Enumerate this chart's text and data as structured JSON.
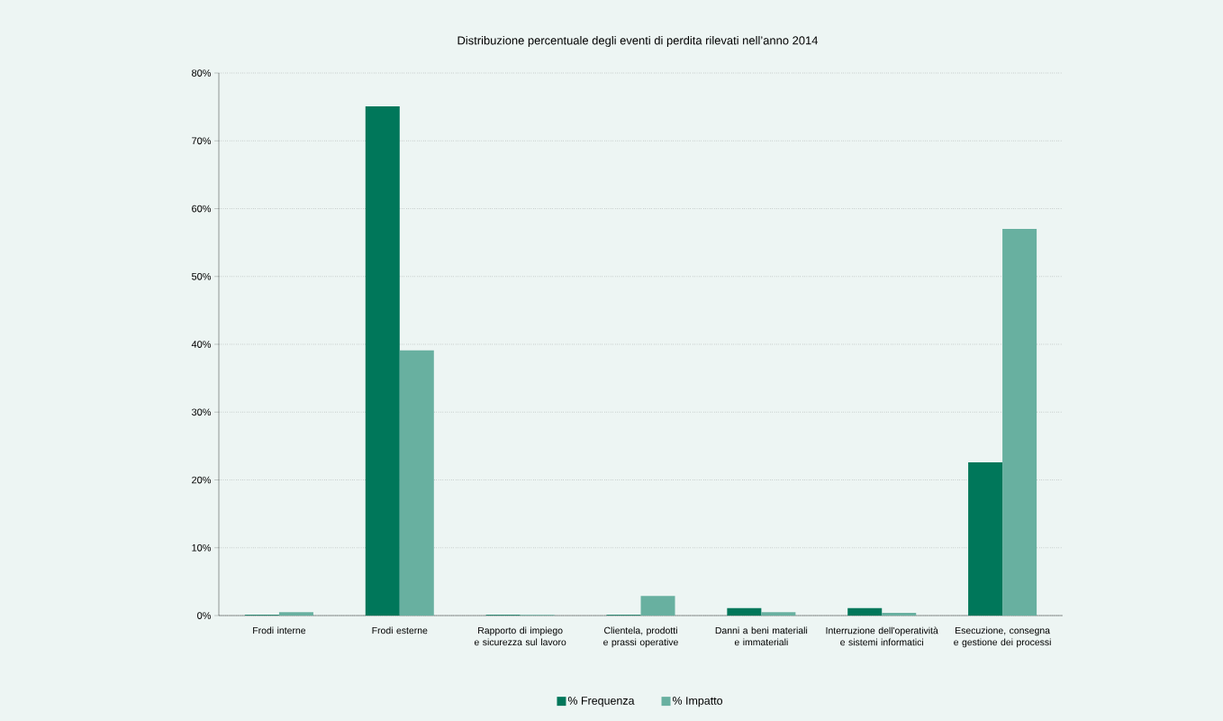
{
  "chart_data": {
    "type": "bar",
    "title": "Distribuzione percentuale degli eventi di perdita rilevati nell’anno 2014",
    "categories": [
      "Frodi interne",
      "Frodi esterne",
      "Rapporto di impiego e sicurezza sul lavoro",
      "Clientela, prodotti e prassi operative",
      "Danni a beni materiali e immateriali",
      "Interruzione dell'operatività e sistemi informatici",
      "Esecuzione, consegna e gestione dei processi"
    ],
    "series": [
      {
        "name": "% Frequenza",
        "color": "#00775a",
        "values": [
          0.1,
          75.1,
          0.1,
          0.1,
          1.1,
          1.1,
          22.6
        ]
      },
      {
        "name": "% Impatto",
        "color": "#68b0a0",
        "values": [
          0.5,
          39.1,
          0.1,
          2.9,
          0.5,
          0.4,
          57.0
        ]
      }
    ],
    "ylim": [
      0,
      80
    ],
    "yticks": [
      {
        "value": 0,
        "label": "0%"
      },
      {
        "value": 10,
        "label": "10%"
      },
      {
        "value": 20,
        "label": "20%"
      },
      {
        "value": 30,
        "label": "30%"
      },
      {
        "value": 40,
        "label": "40%"
      },
      {
        "value": 50,
        "label": "50%"
      },
      {
        "value": 60,
        "label": "60%"
      },
      {
        "value": 70,
        "label": "70%"
      },
      {
        "value": 80,
        "label": "80%"
      }
    ],
    "grid": "y",
    "legend": "bottom"
  }
}
